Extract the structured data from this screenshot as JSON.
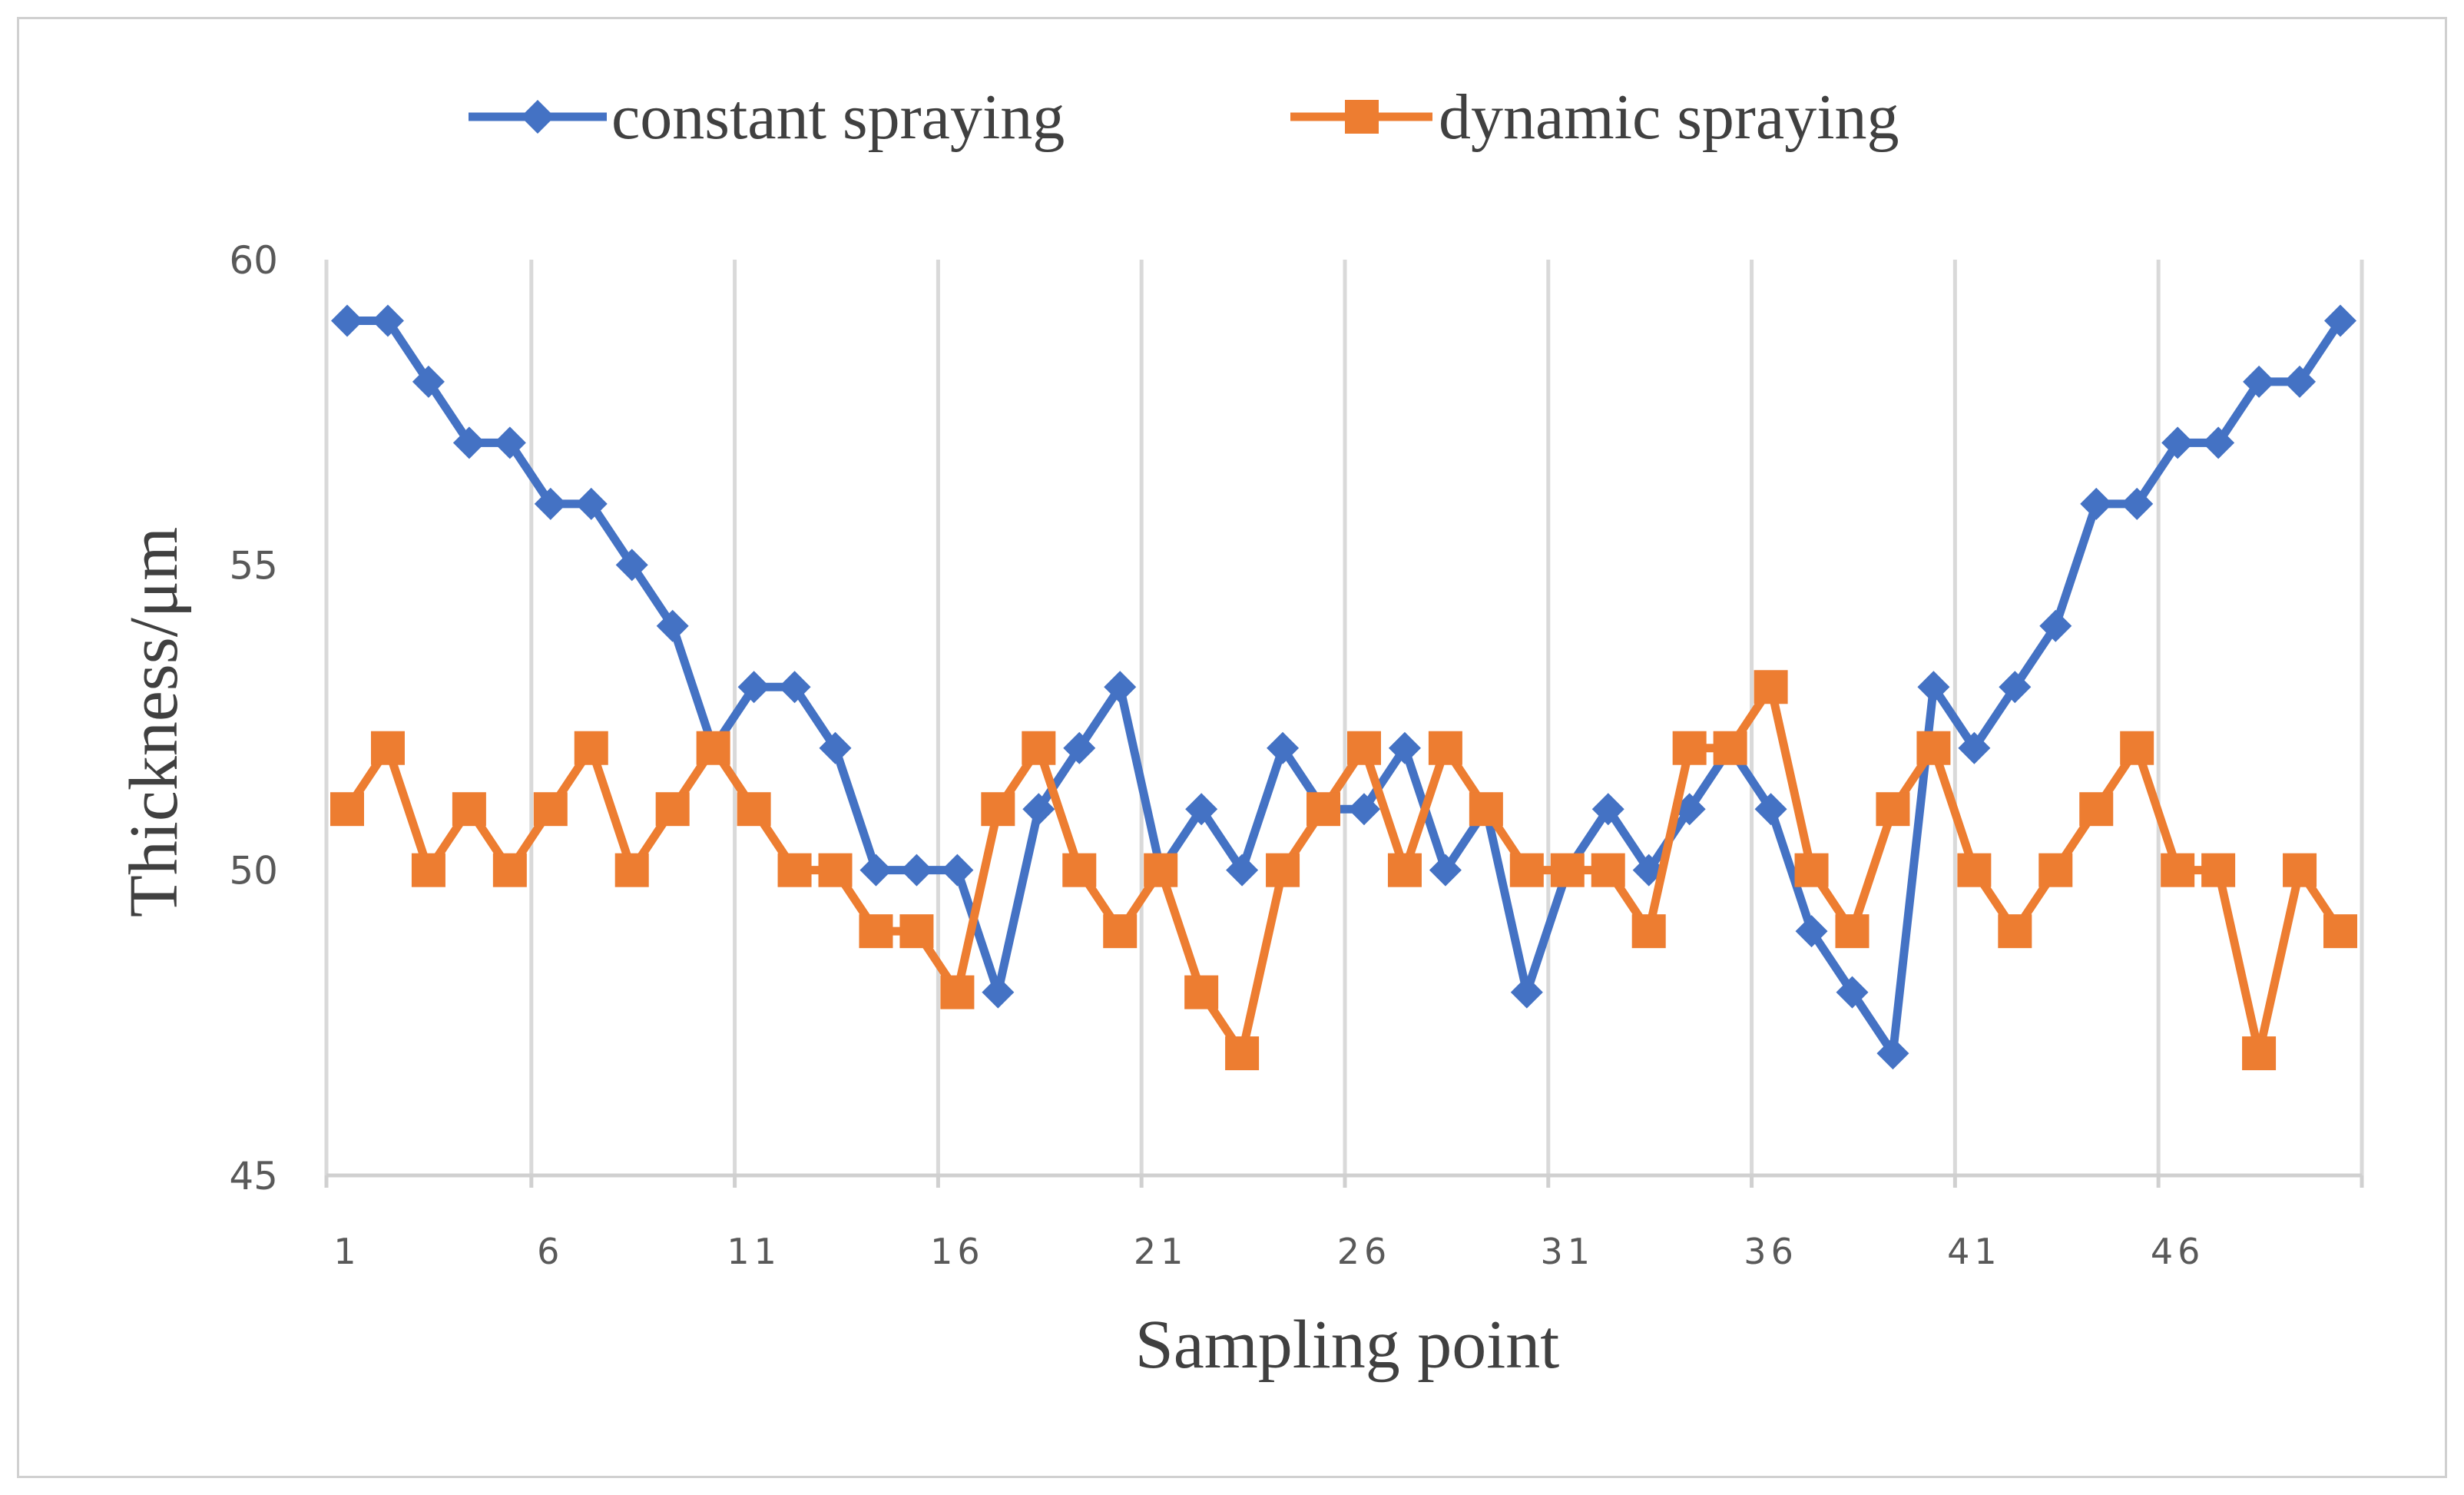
{
  "chart_data": {
    "type": "line",
    "title": "",
    "xlabel": "Sampling point",
    "ylabel": "Thickness/μm",
    "x": [
      1,
      2,
      3,
      4,
      5,
      6,
      7,
      8,
      9,
      10,
      11,
      12,
      13,
      14,
      15,
      16,
      17,
      18,
      19,
      20,
      21,
      22,
      23,
      24,
      25,
      26,
      27,
      28,
      29,
      30,
      31,
      32,
      33,
      34,
      35,
      36,
      37,
      38,
      39,
      40,
      41,
      42,
      43,
      44,
      45,
      46,
      47,
      48,
      49,
      50
    ],
    "xticks": [
      1,
      6,
      11,
      16,
      21,
      26,
      31,
      36,
      41,
      46
    ],
    "xtick_labels": [
      "1",
      "6",
      "11",
      "16",
      "21",
      "26",
      "31",
      "36",
      "41",
      "46"
    ],
    "xlim": [
      1,
      50
    ],
    "ylim": [
      45,
      60
    ],
    "yticks": [
      45,
      50,
      55,
      60
    ],
    "ytick_labels": [
      "45",
      "50",
      "55",
      "60"
    ],
    "grid": "vertical",
    "legend_position": "top-center",
    "series": [
      {
        "name": "constant spraying",
        "color": "#4472C4",
        "marker": "diamond",
        "values": [
          59,
          59,
          58,
          57,
          57,
          56,
          56,
          55,
          54,
          52,
          53,
          53,
          52,
          50,
          50,
          50,
          48,
          51,
          52,
          53,
          50,
          51,
          50,
          52,
          51,
          51,
          52,
          50,
          51,
          48,
          50,
          51,
          50,
          51,
          52,
          51,
          49,
          48,
          47,
          53,
          52,
          53,
          54,
          56,
          56,
          57,
          57,
          58,
          58,
          59
        ]
      },
      {
        "name": "dynamic spraying",
        "color": "#ED7D31",
        "marker": "square",
        "values": [
          51,
          52,
          50,
          51,
          50,
          51,
          52,
          50,
          51,
          52,
          51,
          50,
          50,
          49,
          49,
          48,
          51,
          52,
          50,
          49,
          50,
          48,
          47,
          50,
          51,
          52,
          50,
          52,
          51,
          50,
          50,
          50,
          49,
          52,
          52,
          53,
          50,
          49,
          51,
          52,
          50,
          49,
          50,
          51,
          52,
          50,
          50,
          47,
          50,
          49
        ]
      }
    ]
  }
}
